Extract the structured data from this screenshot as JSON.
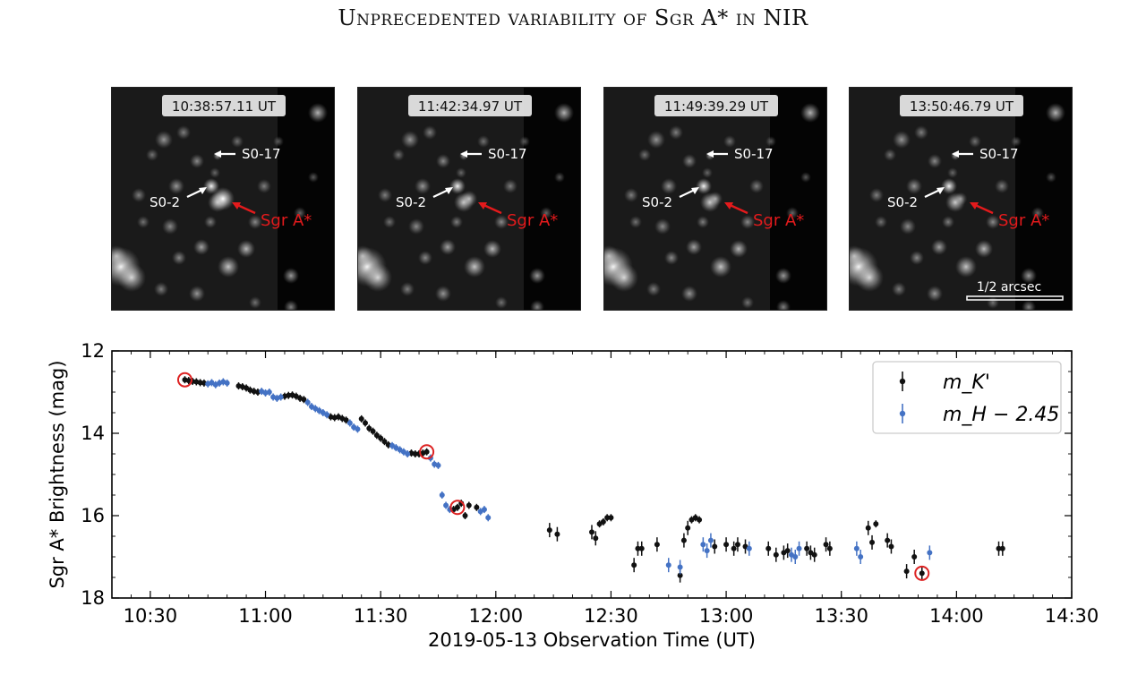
{
  "title": "Unprecedented variability of Sgr A* in NIR",
  "colors": {
    "k_band": "#111111",
    "h_band": "#4472c4",
    "highlight_circle": "#dd2222",
    "sgr_arrow": "#e31a1c"
  },
  "images": {
    "panels": [
      {
        "time_label": "10:38:57.11 UT",
        "sgr_brightness": 1.0
      },
      {
        "time_label": "11:42:34.97 UT",
        "sgr_brightness": 0.45
      },
      {
        "time_label": "11:49:39.29 UT",
        "sgr_brightness": 0.3
      },
      {
        "time_label": "13:50:46.79 UT",
        "sgr_brightness": 0.2
      }
    ],
    "labels": {
      "s017": "S0-17",
      "s02": "S0-2",
      "sgr": "Sgr A*",
      "scale": "1/2 arcsec"
    }
  },
  "chart_data": {
    "type": "scatter",
    "xlabel": "2019-05-13 Observation Time (UT)",
    "ylabel": "Sgr A* Brightness (mag)",
    "x_range": [
      "10:20",
      "14:30"
    ],
    "y_range": [
      18,
      12
    ],
    "y_inverted": true,
    "x_ticks": [
      "10:30",
      "11:00",
      "11:30",
      "12:00",
      "12:30",
      "13:00",
      "13:30",
      "14:00",
      "14:30"
    ],
    "y_ticks": [
      12,
      14,
      16,
      18
    ],
    "legend_position": "top-right",
    "legend": [
      "m_K'",
      "m_H − 2.45"
    ],
    "series": [
      {
        "name": "m_K'",
        "color": "#111111",
        "points": [
          [
            "10:39",
            12.7
          ],
          [
            "10:40",
            12.72
          ],
          [
            "10:41",
            12.74
          ],
          [
            "10:42",
            12.75
          ],
          [
            "10:43",
            12.77
          ],
          [
            "10:44",
            12.78
          ],
          [
            "10:53",
            12.85
          ],
          [
            "10:54",
            12.87
          ],
          [
            "10:55",
            12.9
          ],
          [
            "10:56",
            12.95
          ],
          [
            "10:57",
            12.98
          ],
          [
            "10:58",
            13.0
          ],
          [
            "11:05",
            13.1
          ],
          [
            "11:06",
            13.08
          ],
          [
            "11:07",
            13.07
          ],
          [
            "11:08",
            13.1
          ],
          [
            "11:09",
            13.15
          ],
          [
            "11:10",
            13.18
          ],
          [
            "11:17",
            13.6
          ],
          [
            "11:18",
            13.62
          ],
          [
            "11:19",
            13.6
          ],
          [
            "11:20",
            13.64
          ],
          [
            "11:21",
            13.68
          ],
          [
            "11:25",
            13.65
          ],
          [
            "11:26",
            13.75
          ],
          [
            "11:27",
            13.88
          ],
          [
            "11:28",
            13.95
          ],
          [
            "11:29",
            14.05
          ],
          [
            "11:30",
            14.12
          ],
          [
            "11:31",
            14.2
          ],
          [
            "11:32",
            14.28
          ],
          [
            "11:38",
            14.48
          ],
          [
            "11:39",
            14.5
          ],
          [
            "11:40",
            14.5
          ],
          [
            "11:41",
            14.48
          ],
          [
            "11:42",
            14.45
          ],
          [
            "11:49",
            15.85
          ],
          [
            "11:50",
            15.8
          ],
          [
            "11:51",
            15.7
          ],
          [
            "11:52",
            16.0
          ],
          [
            "11:53",
            15.75
          ],
          [
            "11:55",
            15.8
          ],
          [
            "12:14",
            16.35
          ],
          [
            "12:16",
            16.45
          ],
          [
            "12:25",
            16.4
          ],
          [
            "12:26",
            16.55
          ],
          [
            "12:27",
            16.2
          ],
          [
            "12:28",
            16.15
          ],
          [
            "12:29",
            16.05
          ],
          [
            "12:30",
            16.05
          ],
          [
            "12:36",
            17.2
          ],
          [
            "12:37",
            16.8
          ],
          [
            "12:38",
            16.8
          ],
          [
            "12:42",
            16.7
          ],
          [
            "12:48",
            17.45
          ],
          [
            "12:49",
            16.6
          ],
          [
            "12:50",
            16.3
          ],
          [
            "12:51",
            16.1
          ],
          [
            "12:52",
            16.05
          ],
          [
            "12:53",
            16.1
          ],
          [
            "12:57",
            16.75
          ],
          [
            "13:00",
            16.7
          ],
          [
            "13:02",
            16.8
          ],
          [
            "13:03",
            16.7
          ],
          [
            "13:05",
            16.75
          ],
          [
            "13:11",
            16.8
          ],
          [
            "13:13",
            16.95
          ],
          [
            "13:15",
            16.9
          ],
          [
            "13:16",
            16.85
          ],
          [
            "13:21",
            16.8
          ],
          [
            "13:22",
            16.9
          ],
          [
            "13:23",
            16.95
          ],
          [
            "13:26",
            16.7
          ],
          [
            "13:27",
            16.8
          ],
          [
            "13:37",
            16.3
          ],
          [
            "13:38",
            16.65
          ],
          [
            "13:39",
            16.2
          ],
          [
            "13:42",
            16.6
          ],
          [
            "13:43",
            16.75
          ],
          [
            "13:47",
            17.35
          ],
          [
            "13:49",
            17.0
          ],
          [
            "13:51",
            17.4
          ],
          [
            "14:11",
            16.8
          ],
          [
            "14:12",
            16.8
          ]
        ]
      },
      {
        "name": "m_H − 2.45",
        "color": "#4472c4",
        "points": [
          [
            "10:45",
            12.8
          ],
          [
            "10:46",
            12.77
          ],
          [
            "10:47",
            12.82
          ],
          [
            "10:48",
            12.78
          ],
          [
            "10:49",
            12.75
          ],
          [
            "10:50",
            12.78
          ],
          [
            "10:59",
            12.98
          ],
          [
            "11:00",
            13.02
          ],
          [
            "11:01",
            13.0
          ],
          [
            "11:02",
            13.12
          ],
          [
            "11:03",
            13.15
          ],
          [
            "11:04",
            13.12
          ],
          [
            "11:11",
            13.25
          ],
          [
            "11:12",
            13.35
          ],
          [
            "11:13",
            13.4
          ],
          [
            "11:14",
            13.45
          ],
          [
            "11:15",
            13.5
          ],
          [
            "11:16",
            13.55
          ],
          [
            "11:22",
            13.75
          ],
          [
            "11:23",
            13.85
          ],
          [
            "11:24",
            13.9
          ],
          [
            "11:33",
            14.3
          ],
          [
            "11:34",
            14.35
          ],
          [
            "11:35",
            14.4
          ],
          [
            "11:36",
            14.45
          ],
          [
            "11:37",
            14.5
          ],
          [
            "11:43",
            14.6
          ],
          [
            "11:44",
            14.75
          ],
          [
            "11:45",
            14.78
          ],
          [
            "11:46",
            15.5
          ],
          [
            "11:47",
            15.75
          ],
          [
            "11:48",
            15.85
          ],
          [
            "11:56",
            15.9
          ],
          [
            "11:57",
            15.85
          ],
          [
            "11:58",
            16.05
          ],
          [
            "12:45",
            17.2
          ],
          [
            "12:48",
            17.25
          ],
          [
            "12:54",
            16.7
          ],
          [
            "12:55",
            16.85
          ],
          [
            "12:56",
            16.6
          ],
          [
            "13:06",
            16.8
          ],
          [
            "13:17",
            16.95
          ],
          [
            "13:18",
            17.0
          ],
          [
            "13:19",
            16.8
          ],
          [
            "13:34",
            16.8
          ],
          [
            "13:35",
            17.0
          ],
          [
            "13:53",
            16.9
          ]
        ]
      }
    ],
    "highlighted": [
      [
        "10:39",
        12.7
      ],
      [
        "11:42",
        14.45
      ],
      [
        "11:50",
        15.8
      ],
      [
        "13:51",
        17.4
      ]
    ]
  }
}
